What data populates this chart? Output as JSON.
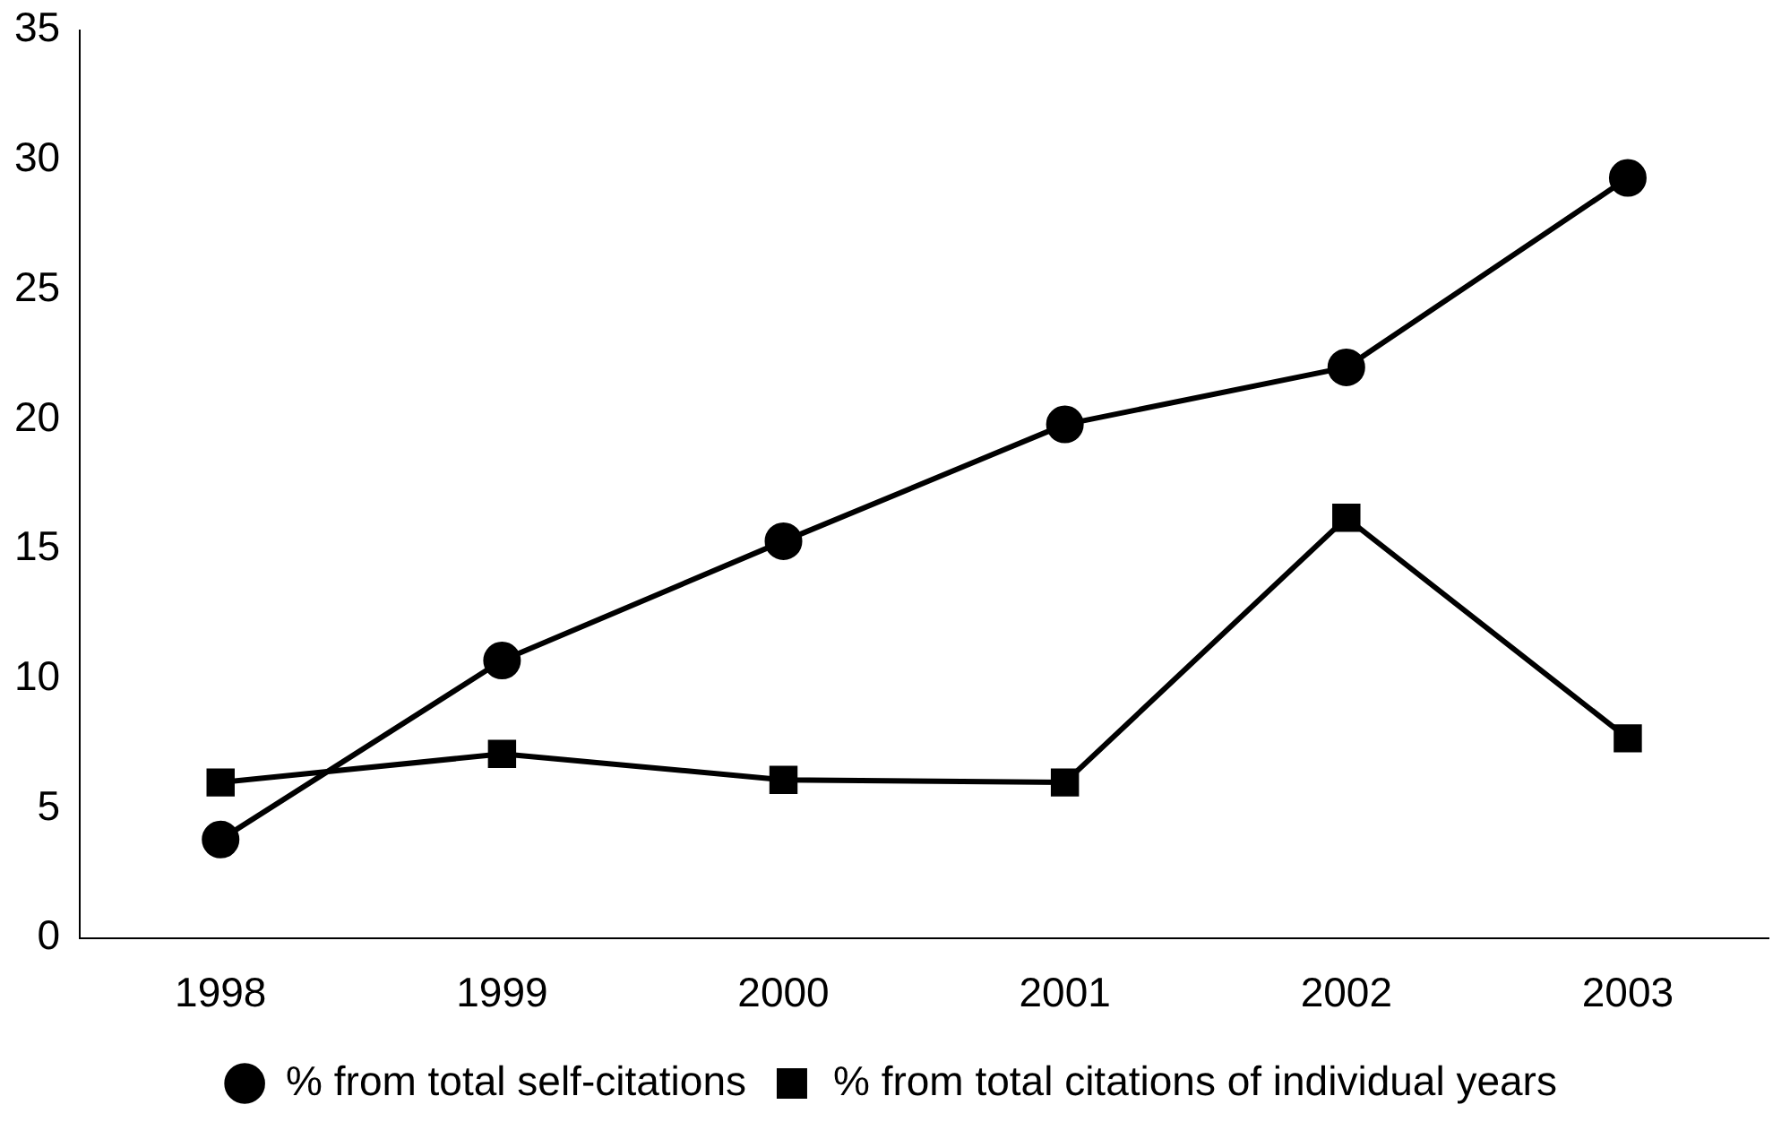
{
  "chart_data": {
    "type": "line",
    "categories": [
      "1998",
      "1999",
      "2000",
      "2001",
      "2002",
      "2003"
    ],
    "series": [
      {
        "name": "% from total self-citations",
        "color": "#000000",
        "marker": "circle",
        "values": [
          3.8,
          10.7,
          15.3,
          19.8,
          22.0,
          29.3
        ]
      },
      {
        "name": "% from total citations of individual years",
        "color": "#000000",
        "marker": "square",
        "values": [
          6.0,
          7.1,
          6.1,
          6.0,
          16.2,
          7.7
        ]
      }
    ],
    "ylim": [
      0,
      35
    ],
    "yticks": [
      0,
      5,
      10,
      15,
      20,
      25,
      30,
      35
    ],
    "grid": false,
    "legend": "bottom",
    "line_style": "solid"
  }
}
